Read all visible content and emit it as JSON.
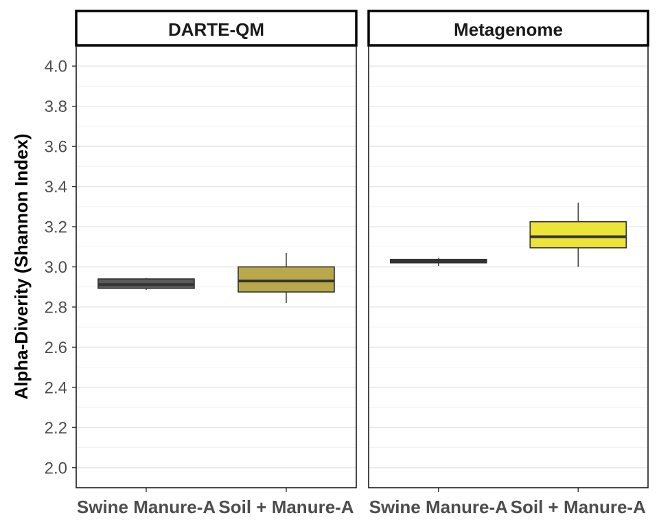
{
  "chart_data": {
    "type": "box",
    "ylabel": "Alpha-Diverity (Shannon Index)",
    "ylim": [
      1.9,
      4.1
    ],
    "yticks": [
      2.0,
      2.2,
      2.4,
      2.6,
      2.8,
      3.0,
      3.2,
      3.4,
      3.6,
      3.8,
      4.0
    ],
    "ytick_labels": [
      "2.0",
      "2.2",
      "2.4",
      "2.6",
      "2.8",
      "3.0",
      "3.2",
      "3.4",
      "3.6",
      "3.8",
      "4.0"
    ],
    "categories": [
      "Swine Manure-A",
      "Soil + Manure-A"
    ],
    "grid": true,
    "facets": [
      {
        "title": "DARTE-QM",
        "boxes": [
          {
            "category": "Swine Manure-A",
            "min": 2.885,
            "q1": 2.893,
            "median": 2.912,
            "q3": 2.94,
            "max": 2.945,
            "color": "#5a5a5a"
          },
          {
            "category": "Soil + Manure-A",
            "min": 2.82,
            "q1": 2.875,
            "median": 2.93,
            "q3": 3.0,
            "max": 3.07,
            "color": "#b8a84a"
          }
        ]
      },
      {
        "title": "Metagenome",
        "boxes": [
          {
            "category": "Swine Manure-A",
            "min": 3.005,
            "q1": 3.02,
            "median": 3.027,
            "q3": 3.037,
            "max": 3.045,
            "color": "#404040"
          },
          {
            "category": "Soil + Manure-A",
            "min": 3.0,
            "q1": 3.095,
            "median": 3.15,
            "q3": 3.225,
            "max": 3.32,
            "color": "#ede43a"
          }
        ]
      }
    ]
  }
}
